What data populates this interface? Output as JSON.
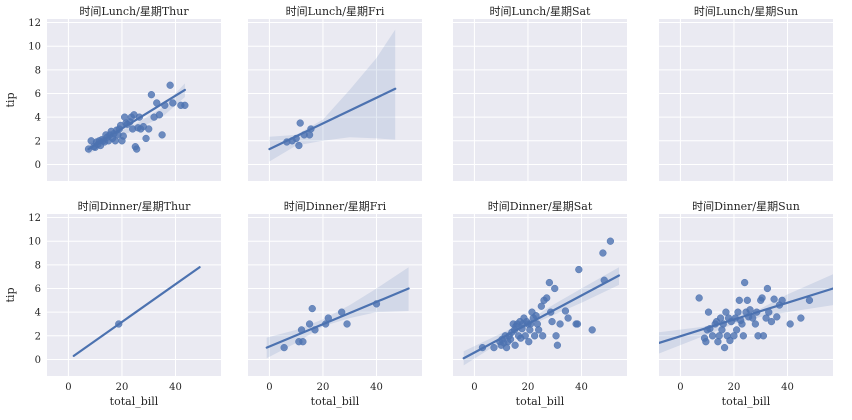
{
  "chart_data": {
    "type": "scatter",
    "facet_type": "lmplot",
    "x_label": "total_bill",
    "y_label": "tip",
    "xlim": [
      -8,
      57
    ],
    "ylim": [
      -1.4,
      12.3
    ],
    "x_ticks": [
      0,
      20,
      40
    ],
    "y_ticks": [
      0,
      2,
      4,
      6,
      8,
      10,
      12
    ],
    "panels": [
      {
        "title": "时间Lunch/星期Thur",
        "fit": {
          "x0": 7.5,
          "y0": 1.3,
          "x1": 43.5,
          "y1": 6.3
        },
        "ci": {
          "upper": [
            [
              7.5,
              1.85
            ],
            [
              15,
              2.4
            ],
            [
              25,
              3.4
            ],
            [
              35,
              4.8
            ],
            [
              43.5,
              6.85
            ]
          ],
          "lower": [
            [
              7.5,
              0.85
            ],
            [
              15,
              1.9
            ],
            [
              25,
              2.95
            ],
            [
              35,
              4.0
            ],
            [
              43.5,
              5.7
            ]
          ]
        },
        "points": [
          [
            7.5,
            1.3
          ],
          [
            8.5,
            2.0
          ],
          [
            9.5,
            1.5
          ],
          [
            10,
            1.45
          ],
          [
            10.5,
            1.9
          ],
          [
            11,
            1.7
          ],
          [
            11.5,
            2.0
          ],
          [
            12,
            1.6
          ],
          [
            12.5,
            2.1
          ],
          [
            13,
            2.0
          ],
          [
            13.5,
            1.9
          ],
          [
            14,
            2.5
          ],
          [
            14.5,
            2.3
          ],
          [
            15,
            2.0
          ],
          [
            15.5,
            2.5
          ],
          [
            16,
            2.8
          ],
          [
            16.5,
            2.2
          ],
          [
            17,
            2.6
          ],
          [
            17.5,
            2.0
          ],
          [
            18,
            2.9
          ],
          [
            18.5,
            2.5
          ],
          [
            19,
            3.0
          ],
          [
            19.5,
            3.3
          ],
          [
            20,
            2.0
          ],
          [
            20.5,
            2.4
          ],
          [
            21,
            4.0
          ],
          [
            21.5,
            3.5
          ],
          [
            22,
            3.4
          ],
          [
            23,
            3.6
          ],
          [
            23.5,
            4.0
          ],
          [
            24,
            3.0
          ],
          [
            24.5,
            4.2
          ],
          [
            25,
            1.5
          ],
          [
            25.5,
            1.3
          ],
          [
            26,
            3.1
          ],
          [
            26.5,
            4.0
          ],
          [
            27,
            3.0
          ],
          [
            28,
            3.2
          ],
          [
            29,
            2.2
          ],
          [
            30,
            3.0
          ],
          [
            31,
            5.9
          ],
          [
            32,
            4.0
          ],
          [
            33,
            5.2
          ],
          [
            34,
            4.2
          ],
          [
            35,
            2.5
          ],
          [
            36,
            5.0
          ],
          [
            38,
            6.7
          ],
          [
            39,
            5.2
          ],
          [
            42,
            5.0
          ],
          [
            43.5,
            5.0
          ]
        ]
      },
      {
        "title": "时间Lunch/星期Fri",
        "fit": {
          "x0": 0,
          "y0": 1.3,
          "x1": 47,
          "y1": 6.4
        },
        "ci": {
          "upper": [
            [
              0,
              2.35
            ],
            [
              10,
              2.5
            ],
            [
              20,
              3.8
            ],
            [
              30,
              6.3
            ],
            [
              40,
              9.0
            ],
            [
              47,
              11.4
            ]
          ],
          "lower": [
            [
              0,
              0.25
            ],
            [
              10,
              1.6
            ],
            [
              20,
              2.0
            ],
            [
              30,
              2.3
            ],
            [
              40,
              2.2
            ],
            [
              47,
              2.1
            ]
          ]
        },
        "points": [
          [
            6.5,
            1.9
          ],
          [
            8.5,
            2.0
          ],
          [
            10,
            2.2
          ],
          [
            11,
            1.6
          ],
          [
            11.5,
            3.5
          ],
          [
            13,
            2.5
          ],
          [
            15,
            2.5
          ],
          [
            15.5,
            3.0
          ]
        ]
      },
      {
        "title": "时间Lunch/星期Sat",
        "fit": null,
        "ci": null,
        "points": []
      },
      {
        "title": "时间Lunch/星期Sun",
        "fit": null,
        "ci": null,
        "points": []
      },
      {
        "title": "时间Dinner/星期Thur",
        "fit": {
          "x0": 2,
          "y0": 0.3,
          "x1": 49,
          "y1": 7.8
        },
        "ci": null,
        "points": [
          [
            18.8,
            3.0
          ]
        ]
      },
      {
        "title": "时间Dinner/星期Fri",
        "fit": {
          "x0": -1,
          "y0": 1.0,
          "x1": 52,
          "y1": 6.0
        },
        "ci": {
          "upper": [
            [
              -1,
              1.85
            ],
            [
              10,
              2.5
            ],
            [
              20,
              3.4
            ],
            [
              30,
              4.6
            ],
            [
              40,
              6.0
            ],
            [
              52,
              7.8
            ]
          ],
          "lower": [
            [
              -1,
              0.1
            ],
            [
              10,
              1.4
            ],
            [
              20,
              2.8
            ],
            [
              30,
              3.5
            ],
            [
              40,
              4.0
            ],
            [
              52,
              4.1
            ]
          ]
        },
        "points": [
          [
            5.5,
            1.0
          ],
          [
            11,
            1.5
          ],
          [
            12,
            2.5
          ],
          [
            12.5,
            1.5
          ],
          [
            15,
            3.0
          ],
          [
            16,
            4.3
          ],
          [
            17,
            2.5
          ],
          [
            21,
            3.0
          ],
          [
            22,
            3.5
          ],
          [
            27,
            4.0
          ],
          [
            29,
            3.0
          ],
          [
            40,
            4.7
          ]
        ]
      },
      {
        "title": "时间Dinner/星期Sat",
        "fit": {
          "x0": -4,
          "y0": 0.1,
          "x1": 54,
          "y1": 7.1
        },
        "ci": {
          "upper": [
            [
              -4,
              0.7
            ],
            [
              10,
              2.2
            ],
            [
              20,
              3.3
            ],
            [
              30,
              4.7
            ],
            [
              40,
              6.0
            ],
            [
              54,
              7.8
            ]
          ],
          "lower": [
            [
              -4,
              -0.5
            ],
            [
              10,
              1.5
            ],
            [
              20,
              2.8
            ],
            [
              30,
              3.8
            ],
            [
              40,
              4.8
            ],
            [
              54,
              6.3
            ]
          ]
        },
        "points": [
          [
            3,
            1.0
          ],
          [
            7.3,
            1.0
          ],
          [
            9.5,
            1.5
          ],
          [
            10,
            1.2
          ],
          [
            10.3,
            1.7
          ],
          [
            11,
            1.4
          ],
          [
            11.5,
            2.0
          ],
          [
            12,
            1.0
          ],
          [
            12.5,
            1.5
          ],
          [
            13,
            2.0
          ],
          [
            13.5,
            1.7
          ],
          [
            14,
            2.3
          ],
          [
            14.5,
            3.0
          ],
          [
            15,
            2.5
          ],
          [
            15.2,
            1.2
          ],
          [
            15.5,
            2.8
          ],
          [
            16,
            3.0
          ],
          [
            16.5,
            2.0
          ],
          [
            17,
            3.2
          ],
          [
            17.3,
            1.8
          ],
          [
            17.8,
            2.6
          ],
          [
            18,
            3.0
          ],
          [
            18.5,
            3.5
          ],
          [
            19,
            2.0
          ],
          [
            19.5,
            3.2
          ],
          [
            20,
            3.0
          ],
          [
            20.3,
            1.5
          ],
          [
            20.7,
            2.5
          ],
          [
            21,
            3.0
          ],
          [
            21.5,
            4.0
          ],
          [
            22,
            3.5
          ],
          [
            22.5,
            2.0
          ],
          [
            23,
            3.7
          ],
          [
            23.5,
            3.0
          ],
          [
            24,
            2.5
          ],
          [
            25,
            4.5
          ],
          [
            25.5,
            2.0
          ],
          [
            26,
            5.0
          ],
          [
            27,
            5.2
          ],
          [
            28,
            6.5
          ],
          [
            28.5,
            4.0
          ],
          [
            29,
            3.2
          ],
          [
            30,
            6.0
          ],
          [
            30.5,
            2.0
          ],
          [
            31,
            1.2
          ],
          [
            32,
            3.0
          ],
          [
            34,
            4.1
          ],
          [
            35,
            3.5
          ],
          [
            38,
            3.0
          ],
          [
            38.5,
            3.0
          ],
          [
            39,
            7.6
          ],
          [
            44,
            2.5
          ],
          [
            48,
            9.0
          ],
          [
            48.5,
            6.7
          ],
          [
            50.8,
            10.0
          ]
        ]
      },
      {
        "title": "时间Dinner/星期Sun",
        "fit": {
          "x0": -8,
          "y0": 1.4,
          "x1": 57,
          "y1": 6.0
        },
        "ci": {
          "upper": [
            [
              -8,
              2.3
            ],
            [
              10,
              2.8
            ],
            [
              20,
              3.7
            ],
            [
              30,
              4.3
            ],
            [
              40,
              5.5
            ],
            [
              57,
              7.2
            ]
          ],
          "lower": [
            [
              -8,
              0.5
            ],
            [
              10,
              2.1
            ],
            [
              20,
              3.0
            ],
            [
              30,
              3.6
            ],
            [
              40,
              4.0
            ],
            [
              57,
              4.6
            ]
          ]
        },
        "points": [
          [
            7,
            5.2
          ],
          [
            9,
            1.8
          ],
          [
            9.5,
            1.5
          ],
          [
            10,
            2.5
          ],
          [
            10.5,
            4.0
          ],
          [
            11,
            2.6
          ],
          [
            12,
            2.0
          ],
          [
            13,
            3.0
          ],
          [
            13.5,
            3.2
          ],
          [
            14,
            1.5
          ],
          [
            14.5,
            2.0
          ],
          [
            15,
            3.5
          ],
          [
            15.5,
            2.5
          ],
          [
            16,
            3.0
          ],
          [
            16.5,
            1.0
          ],
          [
            17,
            4.0
          ],
          [
            17.5,
            2.0
          ],
          [
            18,
            3.5
          ],
          [
            18.5,
            1.6
          ],
          [
            19,
            3.2
          ],
          [
            20,
            2.0
          ],
          [
            20.5,
            3.5
          ],
          [
            21,
            2.5
          ],
          [
            21.5,
            4.0
          ],
          [
            22,
            5.0
          ],
          [
            22.5,
            3.3
          ],
          [
            23,
            3.0
          ],
          [
            23.5,
            2.0
          ],
          [
            24,
            6.5
          ],
          [
            24.5,
            4.0
          ],
          [
            25,
            5.0
          ],
          [
            25.5,
            3.6
          ],
          [
            26,
            4.2
          ],
          [
            27,
            3.5
          ],
          [
            28,
            3.0
          ],
          [
            28.5,
            4.0
          ],
          [
            29,
            2.0
          ],
          [
            30,
            5.0
          ],
          [
            30.5,
            5.2
          ],
          [
            31,
            2.0
          ],
          [
            32,
            3.5
          ],
          [
            32.5,
            6.0
          ],
          [
            33,
            4.0
          ],
          [
            34,
            3.2
          ],
          [
            35,
            5.1
          ],
          [
            36,
            3.6
          ],
          [
            37,
            4.6
          ],
          [
            38,
            5.0
          ],
          [
            41,
            3.0
          ],
          [
            45,
            3.5
          ],
          [
            48.2,
            5.0
          ]
        ]
      }
    ]
  }
}
